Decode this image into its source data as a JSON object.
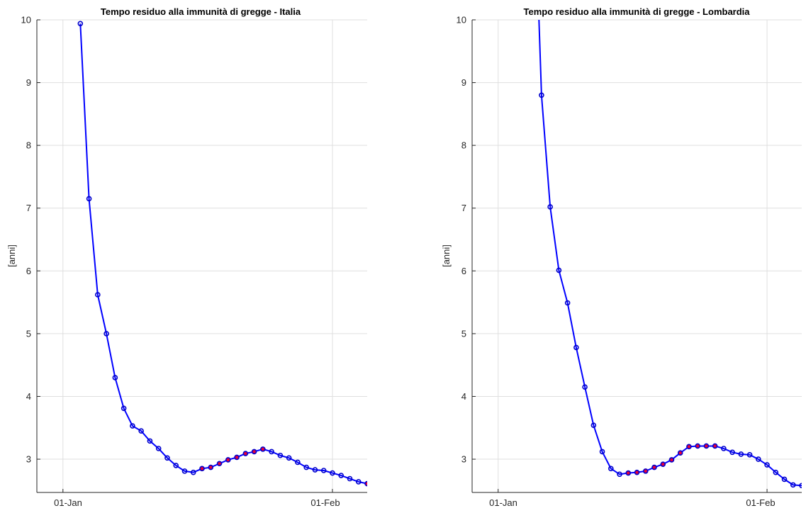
{
  "colors": {
    "line": "#0000ff",
    "marker_edge": "#0000cc",
    "marker_filled": "#e8003a",
    "grid": "#dfdfdf",
    "axis": "#262626"
  },
  "chart_data": [
    {
      "type": "line",
      "title": "Tempo residuo alla immunità di gregge - Italia",
      "ylabel": "[anni]",
      "xlabel": "",
      "ylim": [
        2.47,
        10
      ],
      "xlim": [
        "2020-12-29",
        "2021-02-05"
      ],
      "x_ticks": [
        {
          "date": "2021-01-01",
          "label": "01-Jan"
        },
        {
          "date": "2021-02-01",
          "label": "01-Feb"
        }
      ],
      "y_ticks": [
        3,
        4,
        5,
        6,
        7,
        8,
        9,
        10
      ],
      "grid": true,
      "series": [
        {
          "x": [
            "2021-01-03",
            "2021-01-04",
            "2021-01-05",
            "2021-01-06",
            "2021-01-07",
            "2021-01-08",
            "2021-01-09",
            "2021-01-10",
            "2021-01-11",
            "2021-01-12",
            "2021-01-13",
            "2021-01-14",
            "2021-01-15",
            "2021-01-16",
            "2021-01-17",
            "2021-01-18",
            "2021-01-19",
            "2021-01-20",
            "2021-01-21",
            "2021-01-22",
            "2021-01-23",
            "2021-01-24",
            "2021-01-25",
            "2021-01-26",
            "2021-01-27",
            "2021-01-28",
            "2021-01-29",
            "2021-01-30",
            "2021-01-31",
            "2021-02-01",
            "2021-02-02",
            "2021-02-03",
            "2021-02-04",
            "2021-02-05"
          ],
          "y": [
            9.94,
            7.15,
            5.62,
            5.0,
            4.3,
            3.81,
            3.53,
            3.45,
            3.29,
            3.17,
            3.02,
            2.9,
            2.81,
            2.79,
            2.85,
            2.87,
            2.93,
            2.99,
            3.03,
            3.09,
            3.12,
            3.16,
            3.12,
            3.06,
            3.02,
            2.95,
            2.87,
            2.83,
            2.82,
            2.78,
            2.74,
            2.69,
            2.64,
            2.61
          ],
          "highlighted": [
            false,
            false,
            false,
            false,
            false,
            false,
            false,
            false,
            false,
            false,
            false,
            false,
            false,
            false,
            true,
            true,
            true,
            true,
            true,
            true,
            true,
            true,
            false,
            false,
            false,
            false,
            false,
            false,
            false,
            false,
            false,
            false,
            false,
            true
          ]
        }
      ]
    },
    {
      "type": "line",
      "title": "Tempo residuo alla immunità di gregge - Lombardia",
      "ylabel": "[anni]",
      "xlabel": "",
      "ylim": [
        2.47,
        10
      ],
      "xlim": [
        "2020-12-29",
        "2021-02-05"
      ],
      "x_ticks": [
        {
          "date": "2021-01-01",
          "label": "01-Jan"
        },
        {
          "date": "2021-02-01",
          "label": "01-Feb"
        }
      ],
      "y_ticks": [
        3,
        4,
        5,
        6,
        7,
        8,
        9,
        10
      ],
      "grid": true,
      "series": [
        {
          "x": [
            "2021-01-06",
            "2021-01-07",
            "2021-01-08",
            "2021-01-09",
            "2021-01-10",
            "2021-01-11",
            "2021-01-12",
            "2021-01-13",
            "2021-01-14",
            "2021-01-15",
            "2021-01-16",
            "2021-01-17",
            "2021-01-18",
            "2021-01-19",
            "2021-01-20",
            "2021-01-21",
            "2021-01-22",
            "2021-01-23",
            "2021-01-24",
            "2021-01-25",
            "2021-01-26",
            "2021-01-27",
            "2021-01-28",
            "2021-01-29",
            "2021-01-30",
            "2021-01-31",
            "2021-02-01",
            "2021-02-02",
            "2021-02-03",
            "2021-02-04",
            "2021-02-05"
          ],
          "y": [
            8.8,
            7.02,
            6.01,
            5.49,
            4.78,
            4.15,
            3.54,
            3.12,
            2.85,
            2.76,
            2.78,
            2.79,
            2.81,
            2.87,
            2.92,
            2.99,
            3.1,
            3.2,
            3.21,
            3.21,
            3.21,
            3.17,
            3.11,
            3.08,
            3.07,
            3.0,
            2.91,
            2.79,
            2.68,
            2.59,
            2.58
          ],
          "highlighted": [
            false,
            false,
            false,
            false,
            false,
            false,
            false,
            false,
            false,
            false,
            true,
            true,
            true,
            true,
            true,
            true,
            true,
            true,
            true,
            true,
            true,
            false,
            false,
            false,
            false,
            false,
            false,
            false,
            false,
            false,
            false
          ],
          "enters_from_above": true
        }
      ]
    }
  ]
}
